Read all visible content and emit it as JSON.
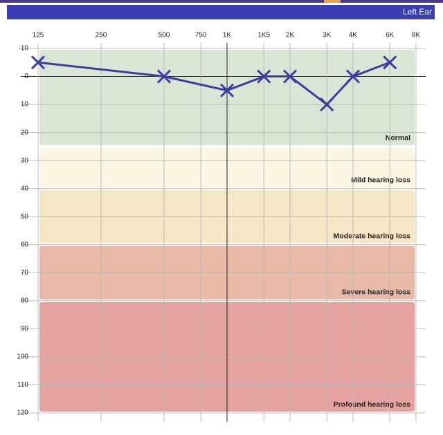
{
  "chart_data": {
    "type": "line",
    "title": "Left Ear",
    "x": [
      125,
      500,
      1000,
      1500,
      2000,
      3000,
      4000,
      6000
    ],
    "series": [
      {
        "color": "#3a3f9f",
        "values": [
          -5,
          0,
          5,
          0,
          0,
          10,
          0,
          -5
        ]
      }
    ],
    "xlim": [
      125,
      8000
    ],
    "xscale": "log",
    "xticks": [
      125,
      250,
      500,
      750,
      {
        "value": 1000,
        "label": "1K"
      },
      {
        "value": 1500,
        "label": "1K5"
      },
      {
        "value": 2000,
        "label": "2K"
      },
      {
        "value": 3000,
        "label": "3K"
      },
      {
        "value": 4000,
        "label": "4K"
      },
      {
        "value": 6000,
        "label": "6K"
      },
      {
        "value": 8000,
        "label": "8K"
      }
    ],
    "ylim": [
      -10,
      120
    ],
    "yinverted": true,
    "yticks": [
      -10,
      0,
      10,
      20,
      30,
      40,
      50,
      60,
      70,
      80,
      90,
      100,
      110,
      120
    ],
    "grid": true,
    "bands": [
      {
        "name": "Normal",
        "from": -10,
        "to": 25,
        "color": "#dae5d5"
      },
      {
        "name": "Mild hearing loss",
        "from": 25,
        "to": 40,
        "color": "#faf6e2"
      },
      {
        "name": "Moderate hearing loss",
        "from": 40,
        "to": 60,
        "color": "#f5e6c5"
      },
      {
        "name": "Severe hearing loss",
        "from": 60,
        "to": 80,
        "color": "#e9b9a8"
      },
      {
        "name": "Profound hearing loss",
        "from": 80,
        "to": 120,
        "color": "#e5a3a0"
      }
    ]
  }
}
